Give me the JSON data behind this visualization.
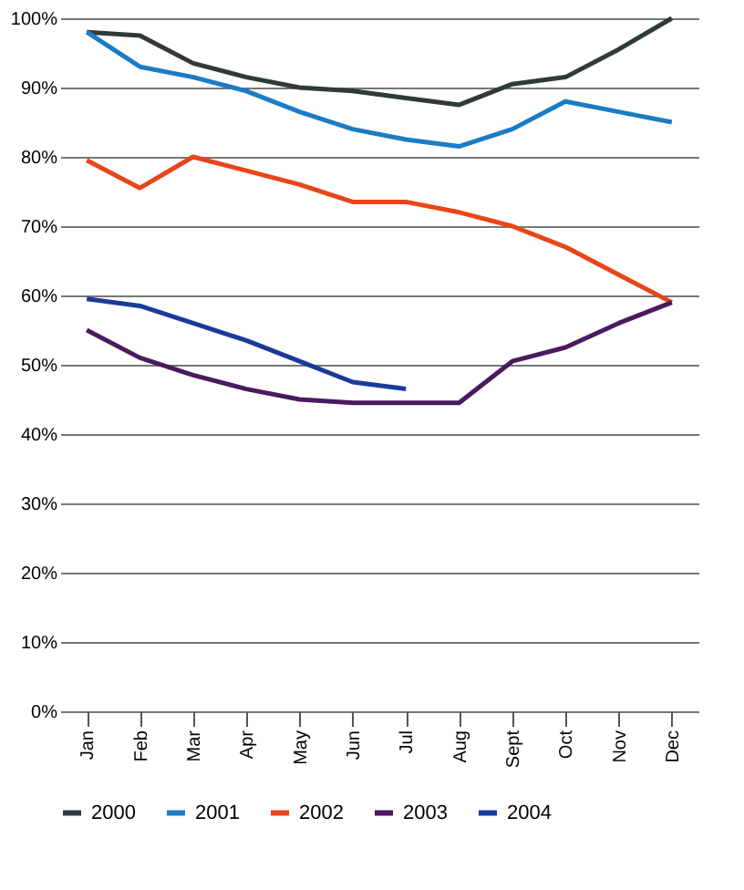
{
  "chart_data": {
    "type": "line",
    "categories": [
      "Jan",
      "Feb",
      "Mar",
      "Apr",
      "May",
      "Jun",
      "Jul",
      "Aug",
      "Sept",
      "Oct",
      "Nov",
      "Dec"
    ],
    "series": [
      {
        "name": "2000",
        "color": "#2f3a3a",
        "values": [
          98,
          97.5,
          93.5,
          91.5,
          90,
          89.5,
          88.5,
          87.5,
          90.5,
          91.5,
          95.5,
          100
        ]
      },
      {
        "name": "2001",
        "color": "#1a7cc4",
        "values": [
          98,
          93,
          91.5,
          89.5,
          86.5,
          84,
          82.5,
          81.5,
          84,
          88,
          86.5,
          85
        ]
      },
      {
        "name": "2002",
        "color": "#e8451a",
        "values": [
          79.5,
          75.5,
          80,
          78,
          76,
          73.5,
          73.5,
          72,
          70,
          67,
          63,
          59
        ]
      },
      {
        "name": "2003",
        "color": "#4a1a5e",
        "values": [
          55,
          51,
          48.5,
          46.5,
          45,
          44.5,
          44.5,
          44.5,
          50.5,
          52.5,
          56,
          59
        ]
      },
      {
        "name": "2004",
        "color": "#1a3a9a",
        "values": [
          59.5,
          58.5,
          56,
          53.5,
          50.5,
          47.5,
          46.5,
          null,
          null,
          null,
          null,
          null
        ]
      }
    ],
    "ylim": [
      0,
      100
    ],
    "yticks": [
      {
        "value": 0,
        "label": "0%"
      },
      {
        "value": 10,
        "label": "10%"
      },
      {
        "value": 20,
        "label": "20%"
      },
      {
        "value": 30,
        "label": "30%"
      },
      {
        "value": 40,
        "label": "40%"
      },
      {
        "value": 50,
        "label": "50%"
      },
      {
        "value": 60,
        "label": "60%"
      },
      {
        "value": 70,
        "label": "70%"
      },
      {
        "value": 80,
        "label": "80%"
      },
      {
        "value": 90,
        "label": "90%"
      },
      {
        "value": 100,
        "label": "100%"
      }
    ],
    "grid": "y",
    "legend": "bottom",
    "marker": "none",
    "line_style": "solid"
  }
}
